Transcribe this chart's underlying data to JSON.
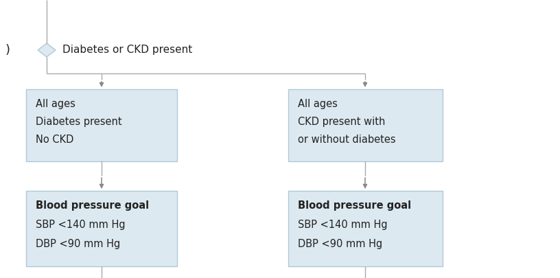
{
  "background_color": "#ffffff",
  "box_fill": "#dce9f0",
  "box_edge": "#b0c8d8",
  "arrow_color": "#888888",
  "line_color": "#aaaaaa",
  "diamond_fill": "#dce9f0",
  "diamond_edge": "#b0c8d8",
  "text_color": "#222222",
  "font_family": "DejaVu Sans",
  "label_diabetes_ckd": "Diabetes or CKD present",
  "left_box_lines": [
    "All ages",
    "Diabetes present",
    "No CKD"
  ],
  "right_box_lines": [
    "All ages",
    "CKD present with",
    "or without diabetes"
  ],
  "left_goal_lines": [
    "Blood pressure goal",
    "SBP <140 mm Hg",
    "DBP <90 mm Hg"
  ],
  "right_goal_lines": [
    "Blood pressure goal",
    "SBP <140 mm Hg",
    "DBP <90 mm Hg"
  ],
  "left_goal_bold": "Blood pressure goal",
  "right_goal_bold": "Blood pressure goal",
  "fig_width": 8.16,
  "fig_height": 4.05,
  "dpi": 100
}
